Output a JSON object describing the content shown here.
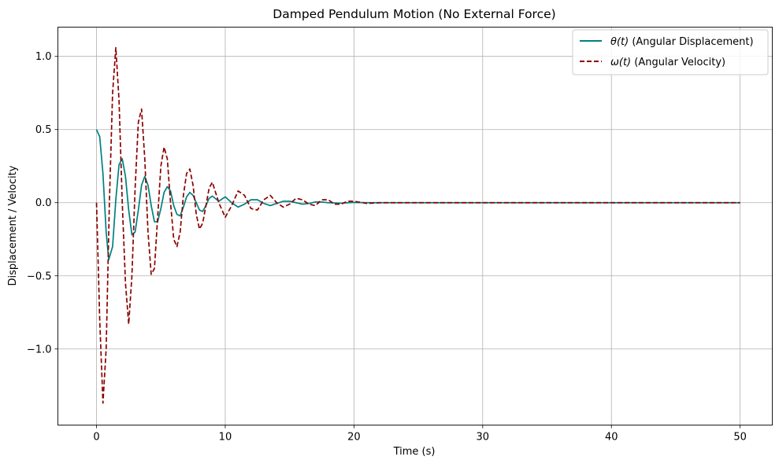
{
  "chart_data": {
    "type": "line",
    "title": "Damped Pendulum Motion (No External Force)",
    "xlabel": "Time (s)",
    "ylabel": "Displacement / Velocity",
    "xlim": [
      -3,
      52.5
    ],
    "ylim": [
      -1.52,
      1.2
    ],
    "xticks": [
      0,
      10,
      20,
      30,
      40,
      50
    ],
    "xtick_labels": [
      "0",
      "10",
      "20",
      "30",
      "40",
      "50"
    ],
    "yticks": [
      -1.0,
      -0.5,
      0.0,
      0.5,
      1.0
    ],
    "ytick_labels": [
      "−1.0",
      "−0.5",
      "0.0",
      "0.5",
      "1.0"
    ],
    "grid": true,
    "legend_position": "top-right",
    "series": [
      {
        "name_math": "θ(t)",
        "name_text": "(Angular Displacement)",
        "color": "#008080",
        "style": "solid",
        "x": [
          0,
          0.25,
          0.5,
          0.75,
          0.95,
          1.25,
          1.5,
          1.75,
          2.0,
          2.25,
          2.5,
          2.75,
          3.0,
          3.25,
          3.5,
          3.75,
          4.0,
          4.25,
          4.5,
          4.75,
          5.0,
          5.25,
          5.5,
          5.75,
          6.0,
          6.25,
          6.5,
          6.75,
          7.0,
          7.25,
          7.5,
          7.75,
          8.0,
          8.25,
          8.5,
          8.75,
          9.0,
          9.5,
          10.0,
          10.5,
          11.0,
          11.5,
          12.0,
          12.5,
          13.0,
          13.5,
          14.0,
          14.5,
          15.0,
          15.5,
          16.0,
          16.5,
          17.0,
          17.5,
          18.0,
          19.0,
          20.0,
          21.0,
          22.0,
          24.0,
          26.0,
          30.0,
          35.0,
          40.0,
          45.0,
          50.0
        ],
        "values": [
          0.5,
          0.45,
          0.2,
          -0.2,
          -0.39,
          -0.3,
          0.02,
          0.26,
          0.3,
          0.18,
          -0.05,
          -0.22,
          -0.2,
          -0.05,
          0.12,
          0.18,
          0.12,
          -0.02,
          -0.13,
          -0.13,
          -0.04,
          0.07,
          0.11,
          0.08,
          -0.02,
          -0.08,
          -0.09,
          -0.03,
          0.04,
          0.07,
          0.05,
          0.0,
          -0.05,
          -0.06,
          -0.02,
          0.03,
          0.045,
          0.01,
          0.04,
          0.0,
          -0.03,
          -0.01,
          0.02,
          0.02,
          -0.005,
          -0.02,
          -0.005,
          0.01,
          0.01,
          0.0,
          -0.01,
          -0.005,
          0.005,
          0.005,
          0.0,
          -0.003,
          0.002,
          0.0,
          0.0,
          0.0,
          0.0,
          0.0,
          0.0,
          0.0,
          0.0,
          0.0
        ]
      },
      {
        "name_math": "ω(t)",
        "name_text": "(Angular Velocity)",
        "color": "#8b0000",
        "style": "dashed",
        "x": [
          0,
          0.25,
          0.5,
          0.75,
          1.0,
          1.25,
          1.5,
          1.75,
          2.0,
          2.25,
          2.5,
          2.75,
          3.0,
          3.25,
          3.5,
          3.75,
          4.0,
          4.25,
          4.5,
          4.75,
          5.0,
          5.25,
          5.5,
          5.75,
          6.0,
          6.25,
          6.5,
          6.75,
          7.0,
          7.25,
          7.5,
          7.75,
          8.0,
          8.25,
          8.5,
          8.75,
          9.0,
          9.5,
          10.0,
          10.5,
          11.0,
          11.5,
          12.0,
          12.5,
          13.0,
          13.5,
          14.0,
          14.5,
          15.0,
          15.5,
          16.0,
          16.5,
          17.0,
          17.5,
          18.0,
          18.5,
          19.0,
          19.5,
          20.0,
          21.0,
          22.0,
          24.0,
          26.0,
          30.0,
          35.0,
          40.0,
          45.0,
          50.0
        ],
        "values": [
          0.0,
          -0.8,
          -1.37,
          -1.0,
          0.0,
          0.75,
          1.06,
          0.7,
          0.0,
          -0.55,
          -0.83,
          -0.5,
          0.1,
          0.55,
          0.64,
          0.3,
          -0.2,
          -0.49,
          -0.45,
          -0.1,
          0.25,
          0.38,
          0.3,
          0.0,
          -0.25,
          -0.3,
          -0.2,
          0.05,
          0.2,
          0.23,
          0.12,
          -0.08,
          -0.18,
          -0.14,
          -0.02,
          0.1,
          0.14,
          0.0,
          -0.1,
          -0.02,
          0.08,
          0.05,
          -0.04,
          -0.05,
          0.02,
          0.05,
          0.0,
          -0.03,
          -0.01,
          0.03,
          0.02,
          -0.01,
          -0.02,
          0.02,
          0.02,
          -0.01,
          -0.01,
          0.01,
          0.01,
          -0.005,
          0.0,
          0.0,
          0.0,
          0.0,
          0.0,
          0.0,
          0.0,
          0.0
        ]
      }
    ]
  }
}
